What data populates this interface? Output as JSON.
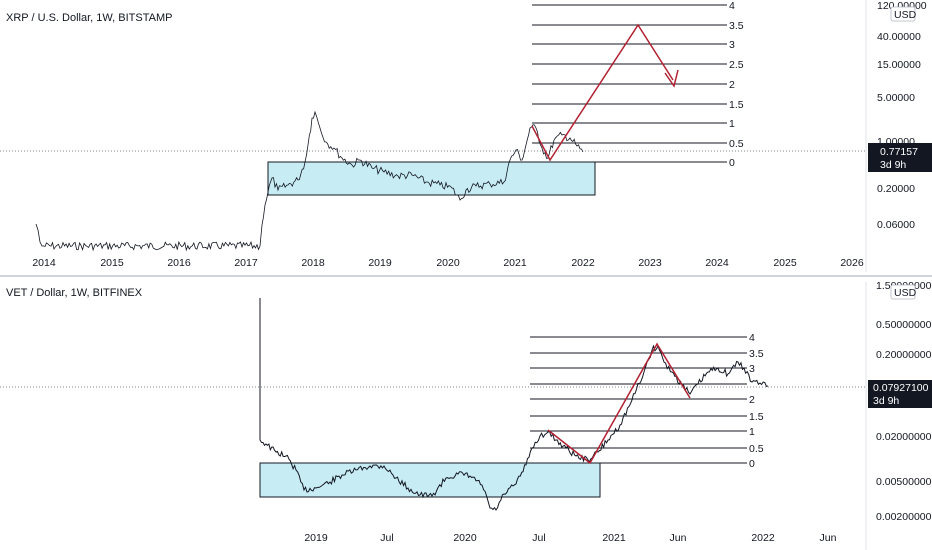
{
  "chart_data": [
    {
      "type": "line",
      "title": "XRP / U.S. Dollar, 1W, BITSTAMP",
      "currency": "USD",
      "y_scale": "log",
      "y_ticks": [
        "120.00000",
        "40.00000",
        "15.00000",
        "5.00000",
        "1.00000",
        "0.20000",
        "0.06000"
      ],
      "last_price": "0.77157",
      "countdown": "3d 9h",
      "x_ticks": [
        "2014",
        "2015",
        "2016",
        "2017",
        "2018",
        "2019",
        "2020",
        "2021",
        "2022",
        "2023",
        "2024",
        "2025",
        "2026"
      ],
      "fib_levels": [
        "4",
        "3.5",
        "3",
        "2.5",
        "2",
        "1.5",
        "1",
        "0.5",
        "0"
      ],
      "accent_color": "#b22233",
      "zone_color": "#c8ecf4"
    },
    {
      "type": "line",
      "title": "VET / Dollar, 1W, BITFINEX",
      "currency": "USD",
      "y_scale": "log",
      "y_ticks": [
        "1.50000000",
        "0.50000000",
        "0.20000000",
        "0.02000000",
        "0.00500000",
        "0.00200000"
      ],
      "last_price": "0.07927100",
      "countdown": "3d 9h",
      "x_ticks": [
        "2019",
        "Jul",
        "2020",
        "Jul",
        "2021",
        "Jun",
        "2022",
        "Jun"
      ],
      "fib_levels": [
        "4",
        "3.5",
        "3",
        "2",
        "1.5",
        "1",
        "0.5",
        "0"
      ],
      "accent_color": "#b22233",
      "zone_color": "#c8ecf4"
    }
  ]
}
